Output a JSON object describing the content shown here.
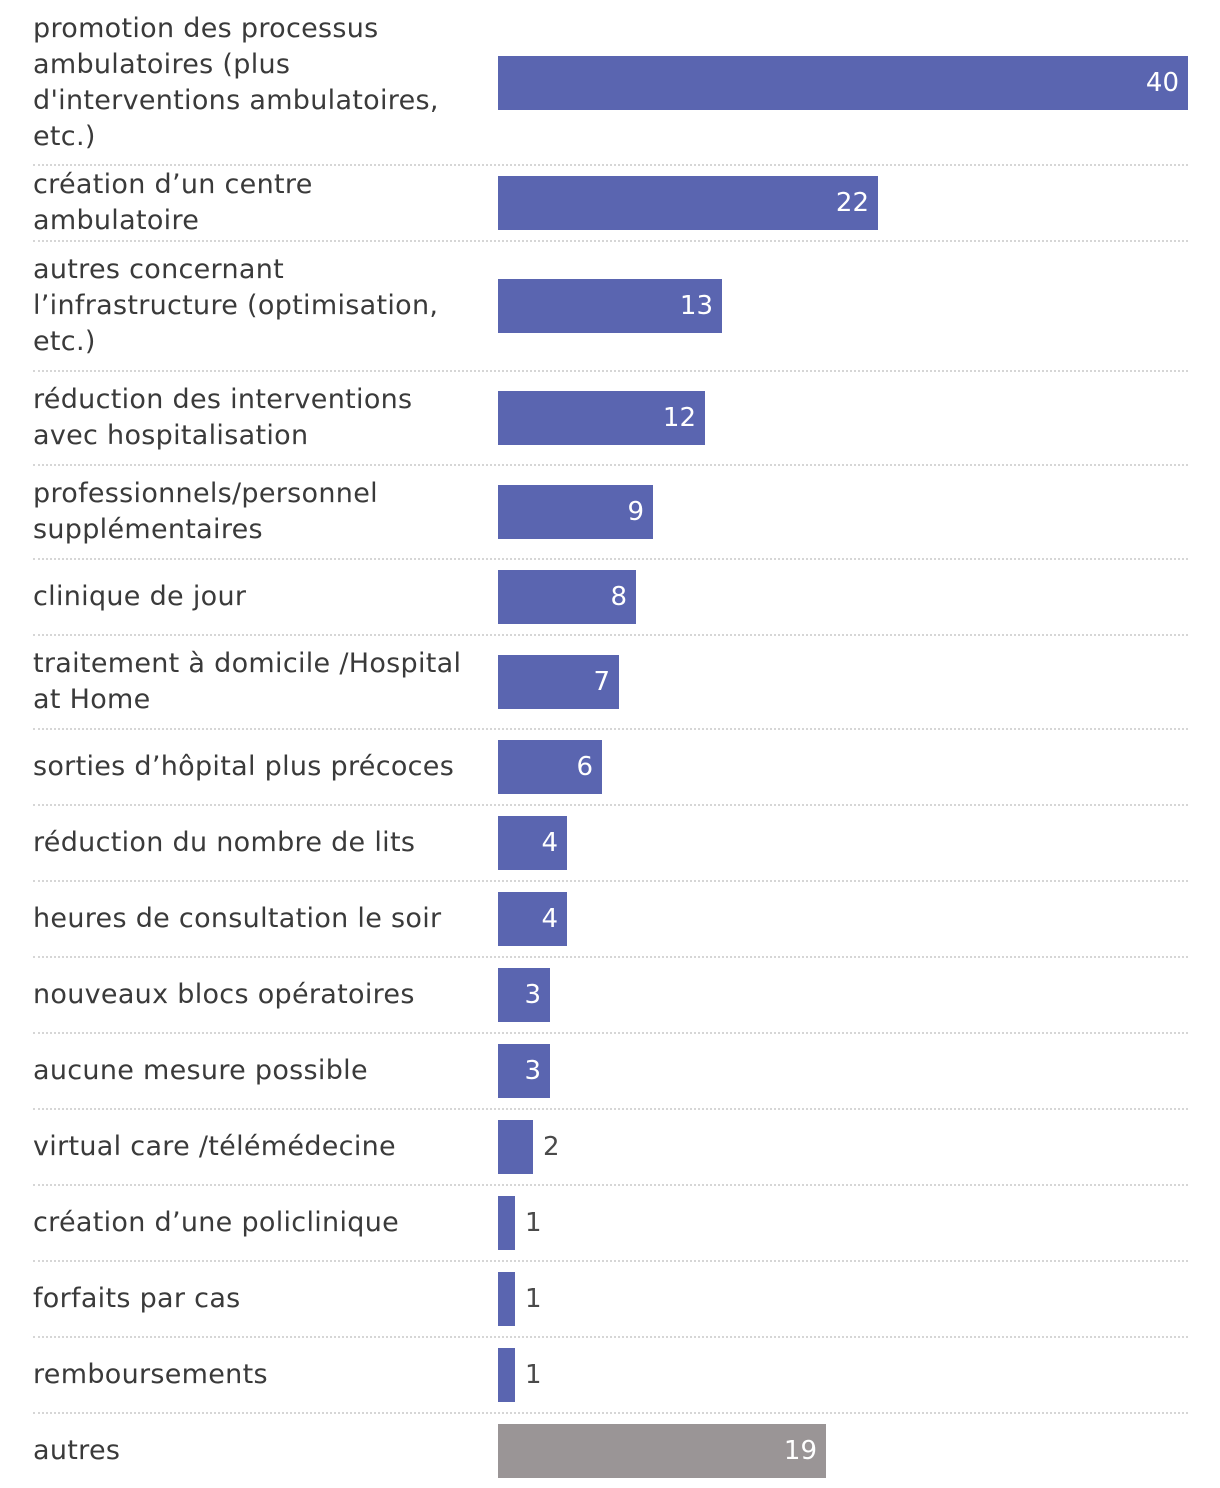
{
  "chart_data": {
    "type": "bar",
    "orientation": "horizontal",
    "title": "",
    "xlabel": "",
    "ylabel": "",
    "xlim": [
      0,
      40
    ],
    "grid": false,
    "legend": "none",
    "categories": [
      "promotion des processus ambulatoires (plus d'interventions ambulatoires, etc.)",
      "création d’un centre ambulatoire",
      "autres concernant l’infrastructure (optimisation, etc.)",
      "réduction des interventions avec hospitalisation",
      "professionnels/personnel supplémentaires",
      "clinique de jour",
      "traitement à domicile /Hospital at Home",
      "sorties d’hôpital plus précoces",
      "réduction du nombre de lits",
      "heures de consultation le soir",
      "nouveaux blocs opératoires",
      "aucune mesure possible",
      "virtual care /télémédecine",
      "création d’une policlinique",
      "forfaits par cas",
      "remboursements",
      "autres"
    ],
    "values": [
      40,
      22,
      13,
      12,
      9,
      8,
      7,
      6,
      4,
      4,
      3,
      3,
      2,
      1,
      1,
      1,
      19
    ],
    "colors": [
      "#5a65b0",
      "#5a65b0",
      "#5a65b0",
      "#5a65b0",
      "#5a65b0",
      "#5a65b0",
      "#5a65b0",
      "#5a65b0",
      "#5a65b0",
      "#5a65b0",
      "#5a65b0",
      "#5a65b0",
      "#5a65b0",
      "#5a65b0",
      "#5a65b0",
      "#5a65b0",
      "#9a9596"
    ]
  }
}
